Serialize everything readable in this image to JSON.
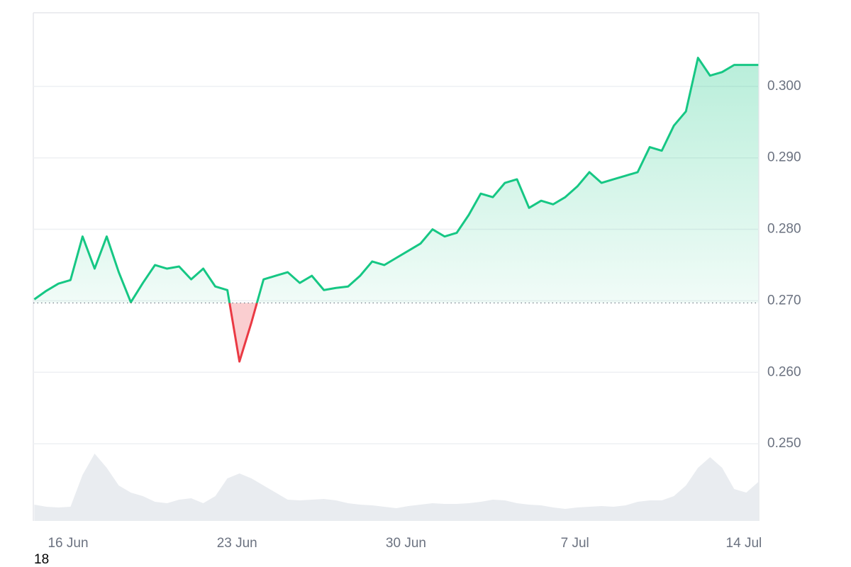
{
  "chart_data": {
    "type": "line",
    "x": [
      14.6,
      15.1,
      15.6,
      16.1,
      16.6,
      17.1,
      17.6,
      18.1,
      18.6,
      19.1,
      19.6,
      20.1,
      20.6,
      21.1,
      21.6,
      22.1,
      22.6,
      23.1,
      23.6,
      24.1,
      24.6,
      25.1,
      25.6,
      26.1,
      26.6,
      27.1,
      27.6,
      28.1,
      28.6,
      29.1,
      29.6,
      30.1,
      30.6,
      31.1,
      31.6,
      32.1,
      32.6,
      33.1,
      33.6,
      34.1,
      34.6,
      35.1,
      35.6,
      36.1,
      36.6,
      37.1,
      37.6,
      38.1,
      38.6,
      39.1,
      39.6,
      40.1,
      40.6,
      41.1,
      41.6,
      42.1,
      42.6,
      43.1,
      43.6,
      44.1,
      44.6
    ],
    "values": [
      0.2702,
      0.2714,
      0.2724,
      0.2729,
      0.279,
      0.2745,
      0.279,
      0.274,
      0.2698,
      0.2725,
      0.275,
      0.2745,
      0.2748,
      0.273,
      0.2745,
      0.272,
      0.2715,
      0.2615,
      0.267,
      0.273,
      0.2735,
      0.274,
      0.2725,
      0.2735,
      0.2715,
      0.2718,
      0.272,
      0.2735,
      0.2755,
      0.275,
      0.276,
      0.277,
      0.278,
      0.28,
      0.279,
      0.2795,
      0.282,
      0.285,
      0.2845,
      0.2865,
      0.287,
      0.283,
      0.284,
      0.2835,
      0.2845,
      0.286,
      0.288,
      0.2865,
      0.287,
      0.2875,
      0.288,
      0.2915,
      0.291,
      0.2945,
      0.2965,
      0.304,
      0.3015,
      0.302,
      0.303,
      0.303,
      0.303
    ],
    "color": "#16c784",
    "down_color": "#ea3943",
    "baseline": 0.2697,
    "xlim": [
      14.56,
      44.62
    ],
    "xticks": [
      {
        "value": 16,
        "label": "16 Jun"
      },
      {
        "value": 23,
        "label": "23 Jun"
      },
      {
        "value": 30,
        "label": "30 Jun"
      },
      {
        "value": 37,
        "label": "7 Jul"
      },
      {
        "value": 44,
        "label": "14 Jul"
      }
    ],
    "ylim": [
      0.2392,
      0.3103
    ],
    "yticks": [
      {
        "value": 0.25,
        "label": "0.250"
      },
      {
        "value": 0.26,
        "label": "0.260"
      },
      {
        "value": 0.27,
        "label": "0.270"
      },
      {
        "value": 0.28,
        "label": "0.280"
      },
      {
        "value": 0.29,
        "label": "0.290"
      },
      {
        "value": 0.3,
        "label": "0.300"
      }
    ],
    "grid": true,
    "volume": {
      "values": [
        23,
        20,
        19,
        20,
        65,
        95,
        75,
        50,
        40,
        35,
        27,
        25,
        30,
        32,
        25,
        35,
        60,
        67,
        60,
        50,
        40,
        30,
        29,
        30,
        31,
        29,
        25,
        23,
        22,
        20,
        18,
        21,
        23,
        25,
        24,
        24,
        25,
        27,
        30,
        29,
        25,
        23,
        22,
        19,
        17,
        19,
        20,
        21,
        20,
        22,
        27,
        29,
        29,
        35,
        50,
        75,
        90,
        75,
        45,
        40,
        55
      ],
      "ylim": [
        0,
        100
      ],
      "color": "#e9ecf0"
    },
    "footer": "18"
  }
}
